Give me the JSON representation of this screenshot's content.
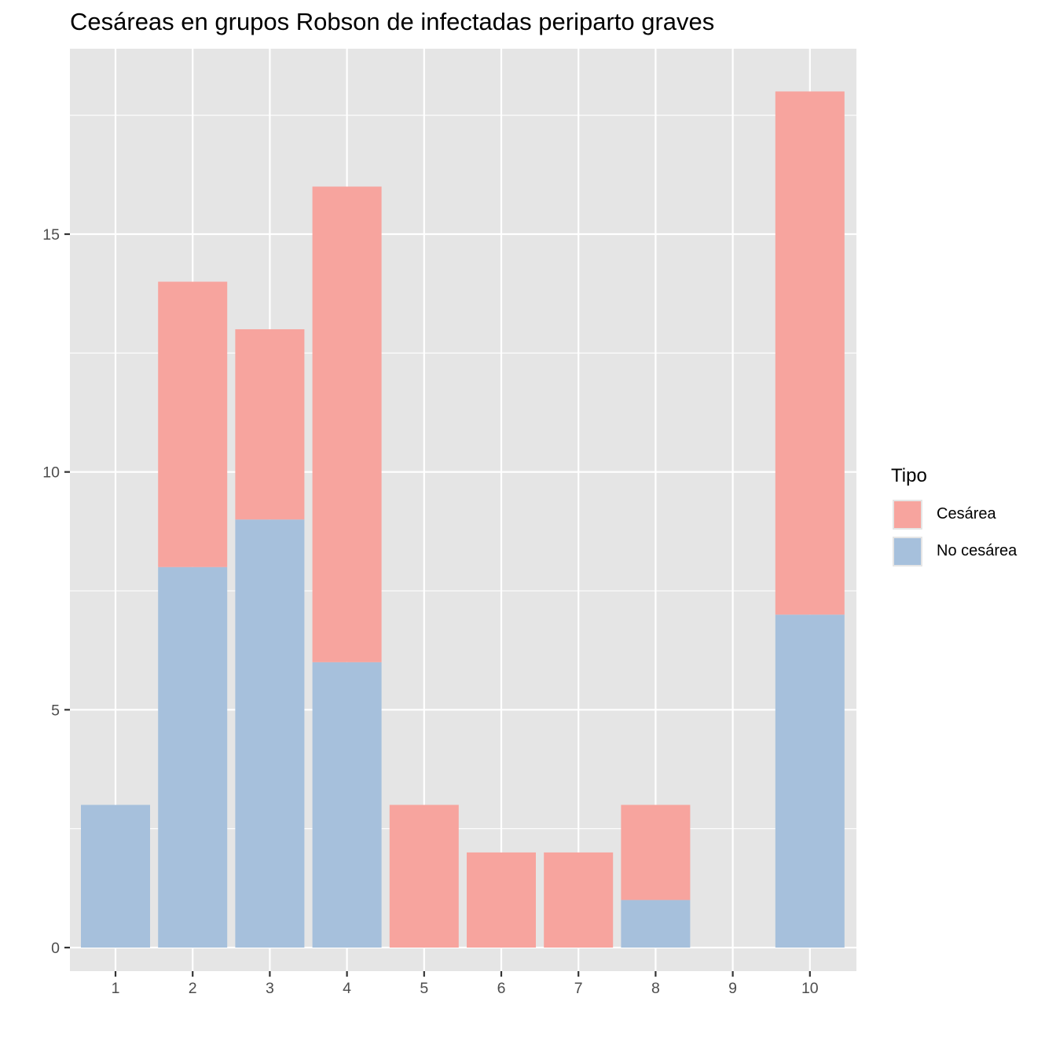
{
  "chart_data": {
    "type": "bar",
    "stacked": true,
    "title": "Cesáreas en grupos Robson de infectadas periparto graves",
    "xlabel": "",
    "ylabel": "",
    "categories": [
      "1",
      "2",
      "3",
      "4",
      "5",
      "6",
      "7",
      "8",
      "9",
      "10"
    ],
    "series": [
      {
        "name": "No cesárea",
        "color": "#a6c0dc",
        "values": [
          3,
          8,
          9,
          6,
          0,
          0,
          0,
          1,
          0,
          7
        ]
      },
      {
        "name": "Cesárea",
        "color": "#f7a49e",
        "values": [
          0,
          6,
          4,
          10,
          3,
          2,
          2,
          2,
          0,
          11
        ]
      }
    ],
    "yticks": [
      "0",
      "5",
      "10",
      "15"
    ],
    "ylim": [
      -0.9,
      19
    ],
    "grid": true,
    "legend": {
      "title": "Tipo",
      "placement": "right",
      "items": [
        {
          "label": "Cesárea",
          "color": "#f7a49e"
        },
        {
          "label": "No cesárea",
          "color": "#a6c0dc"
        }
      ]
    },
    "background": "#e5e5e5",
    "grid_color": "#ffffff"
  }
}
